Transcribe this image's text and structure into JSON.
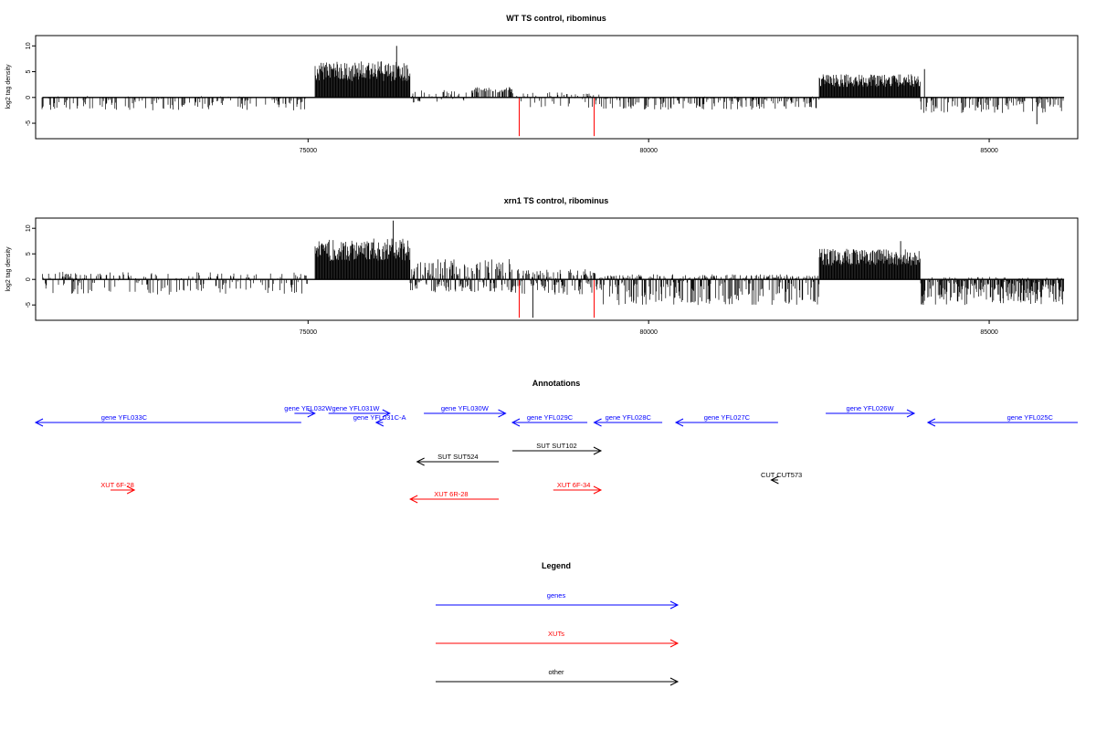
{
  "chart_data": [
    {
      "type": "bar",
      "title": "WT TS control, ribominus",
      "ylabel": "log2 tag density",
      "xlabel": "",
      "xlim": [
        71000,
        86300
      ],
      "ylim": [
        -8,
        12
      ],
      "xticks": [
        75000,
        80000,
        85000
      ],
      "xtick_labels": [
        "75000",
        "80000",
        "85000"
      ],
      "yticks": [
        10,
        5,
        0,
        -5
      ],
      "ytick_labels": [
        "10",
        "5",
        "0",
        "-5"
      ],
      "grid": false,
      "legend": "none",
      "baseline": 0,
      "bar_color": "#000000",
      "highlight_color": "#ff0000",
      "data_extent": [
        71100,
        86100
      ],
      "highlights": [
        {
          "x": 78100,
          "y": -7.5
        },
        {
          "x": 79200,
          "y": -7.5
        }
      ],
      "segments": [
        {
          "x0": 71100,
          "x1": 75000,
          "lo": -2.5,
          "hi": 0.3,
          "density": 0.35
        },
        {
          "x0": 75100,
          "x1": 76500,
          "lo": 0,
          "hi": 7,
          "density": 1.0
        },
        {
          "x0": 76500,
          "x1": 77400,
          "lo": -1,
          "hi": 1.5,
          "density": 0.35
        },
        {
          "x0": 77400,
          "x1": 78000,
          "lo": 0,
          "hi": 2,
          "density": 0.45
        },
        {
          "x0": 78000,
          "x1": 79300,
          "lo": -2,
          "hi": 1,
          "density": 0.3
        },
        {
          "x0": 79300,
          "x1": 82500,
          "lo": -2.5,
          "hi": 0.2,
          "density": 0.4
        },
        {
          "x0": 82500,
          "x1": 84000,
          "lo": 0,
          "hi": 4.5,
          "density": 1.0
        },
        {
          "x0": 84000,
          "x1": 86100,
          "lo": -3,
          "hi": 0.2,
          "density": 0.45
        }
      ],
      "peaks": [
        {
          "x": 76300,
          "y": 10
        },
        {
          "x": 84050,
          "y": 5.5
        },
        {
          "x": 85700,
          "y": -5.2
        }
      ]
    },
    {
      "type": "bar",
      "title": "xrn1 TS control, ribominus",
      "ylabel": "log2 tag density",
      "xlabel": "",
      "xlim": [
        71000,
        86300
      ],
      "ylim": [
        -8,
        12
      ],
      "xticks": [
        75000,
        80000,
        85000
      ],
      "xtick_labels": [
        "75000",
        "80000",
        "85000"
      ],
      "yticks": [
        10,
        5,
        0,
        -5
      ],
      "ytick_labels": [
        "10",
        "5",
        "0",
        "-5"
      ],
      "grid": false,
      "legend": "none",
      "baseline": 0,
      "bar_color": "#000000",
      "highlight_color": "#ff0000",
      "data_extent": [
        71100,
        86100
      ],
      "highlights": [
        {
          "x": 78100,
          "y": -7.5
        },
        {
          "x": 79200,
          "y": -7.5
        }
      ],
      "segments": [
        {
          "x0": 71100,
          "x1": 75000,
          "lo": -3,
          "hi": 1.5,
          "density": 0.45
        },
        {
          "x0": 75100,
          "x1": 76500,
          "lo": 0,
          "hi": 8,
          "density": 1.0
        },
        {
          "x0": 76500,
          "x1": 78000,
          "lo": -2.5,
          "hi": 4,
          "density": 0.9
        },
        {
          "x0": 78000,
          "x1": 79300,
          "lo": -3,
          "hi": 2,
          "density": 0.8
        },
        {
          "x0": 79300,
          "x1": 82500,
          "lo": -5,
          "hi": 1,
          "density": 0.85
        },
        {
          "x0": 82500,
          "x1": 84000,
          "lo": 0,
          "hi": 6,
          "density": 1.0
        },
        {
          "x0": 84000,
          "x1": 86100,
          "lo": -5,
          "hi": 0.5,
          "density": 0.9
        }
      ],
      "peaks": [
        {
          "x": 76250,
          "y": 11.5
        },
        {
          "x": 78300,
          "y": -7.5
        },
        {
          "x": 83700,
          "y": 7.5
        }
      ]
    }
  ],
  "annotations": {
    "title": "Annotations",
    "features": [
      {
        "label": "gene YFL033C",
        "category": "genes",
        "strand": "-",
        "start": 71000,
        "end": 74900,
        "row": 2,
        "label_x": 72300
      },
      {
        "label": "gene YFL032W",
        "category": "genes",
        "strand": "+",
        "start": 74800,
        "end": 75100,
        "row": 1,
        "label_x": 75000
      },
      {
        "label": "gene YFL031W",
        "category": "genes",
        "strand": "+",
        "start": 75300,
        "end": 76200,
        "row": 1,
        "label_x": 75700
      },
      {
        "label": "gene YFL031C-A",
        "category": "genes",
        "strand": "-",
        "start": 76000,
        "end": 76100,
        "row": 2,
        "label_x": 76050
      },
      {
        "label": "gene YFL030W",
        "category": "genes",
        "strand": "+",
        "start": 76700,
        "end": 77900,
        "row": 1,
        "label_x": 77300
      },
      {
        "label": "gene YFL029C",
        "category": "genes",
        "strand": "-",
        "start": 78000,
        "end": 79100,
        "row": 2,
        "label_x": 78550
      },
      {
        "label": "gene YFL028C",
        "category": "genes",
        "strand": "-",
        "start": 79200,
        "end": 80200,
        "row": 2,
        "label_x": 79700
      },
      {
        "label": "gene YFL027C",
        "category": "genes",
        "strand": "-",
        "start": 80400,
        "end": 81900,
        "row": 2,
        "label_x": 81150
      },
      {
        "label": "gene YFL026W",
        "category": "genes",
        "strand": "+",
        "start": 82600,
        "end": 83900,
        "row": 1,
        "label_x": 83250
      },
      {
        "label": "gene YFL025C",
        "category": "genes",
        "strand": "-",
        "start": 84100,
        "end": 86300,
        "row": 2,
        "label_x": 85600
      },
      {
        "label": "SUT SUT524",
        "category": "other",
        "strand": "-",
        "start": 76600,
        "end": 77800,
        "row": 4,
        "label_x": 77200
      },
      {
        "label": "SUT SUT102",
        "category": "other",
        "strand": "+",
        "start": 78000,
        "end": 79300,
        "row": 3,
        "label_x": 78650
      },
      {
        "label": "CUT CUT573",
        "category": "other",
        "strand": "-",
        "start": 81800,
        "end": 81900,
        "row": 5,
        "label_x": 81950
      },
      {
        "label": "XUT 6F-28",
        "category": "XUTs",
        "strand": "+",
        "start": 72100,
        "end": 72450,
        "row": 6,
        "label_x": 72200
      },
      {
        "label": "XUT 6R-28",
        "category": "XUTs",
        "strand": "-",
        "start": 76500,
        "end": 77800,
        "row": 7,
        "label_x": 77100
      },
      {
        "label": "XUT 6F-34",
        "category": "XUTs",
        "strand": "+",
        "start": 78600,
        "end": 79300,
        "row": 6,
        "label_x": 78900
      }
    ]
  },
  "legend": {
    "title": "Legend",
    "items": [
      {
        "label": "genes",
        "color": "#0000ff"
      },
      {
        "label": "XUTs",
        "color": "#ff0000"
      },
      {
        "label": "other",
        "color": "#000000"
      }
    ]
  },
  "colors": {
    "genes": "#0000ff",
    "XUTs": "#ff0000",
    "other": "#000000"
  }
}
